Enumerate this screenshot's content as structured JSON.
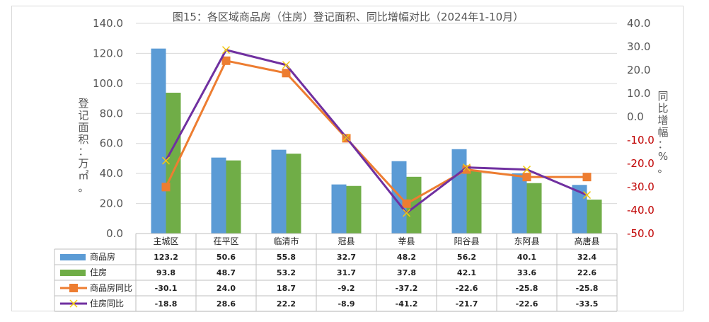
{
  "chart_data": {
    "type": "bar",
    "title": "图15：各区域商品房（住房）登记面积、同比增幅对比（2024年1-10月）",
    "ylabel_left": "登记面积：万㎡。",
    "ylabel_right": "同比增幅：%。",
    "categories": [
      "主城区",
      "茌平区",
      "临清市",
      "冠县",
      "莘县",
      "阳谷县",
      "东阿县",
      "高唐县"
    ],
    "ylim_left": [
      0,
      140
    ],
    "ylim_right": [
      -50,
      40
    ],
    "yticks_left": [
      "0.0",
      "20.0",
      "40.0",
      "60.0",
      "80.0",
      "100.0",
      "120.0",
      "140.0"
    ],
    "yticks_right": [
      "-50.0",
      "-40.0",
      "-30.0",
      "-20.0",
      "-10.0",
      "0.0",
      "10.0",
      "20.0",
      "30.0",
      "40.0"
    ],
    "grid": true,
    "legend": "data-table",
    "series": [
      {
        "name": "商品房",
        "kind": "bar",
        "axis": "left",
        "color": "#5b9bd5",
        "values": [
          123.2,
          50.6,
          55.8,
          32.7,
          48.2,
          56.2,
          40.1,
          32.4
        ],
        "labels": [
          "123.2",
          "50.6",
          "55.8",
          "32.7",
          "48.2",
          "56.2",
          "40.1",
          "32.4"
        ]
      },
      {
        "name": "住房",
        "kind": "bar",
        "axis": "left",
        "color": "#70ad47",
        "values": [
          93.8,
          48.7,
          53.2,
          31.7,
          37.8,
          42.1,
          33.6,
          22.6
        ],
        "labels": [
          "93.8",
          "48.7",
          "53.2",
          "31.7",
          "37.8",
          "42.1",
          "33.6",
          "22.6"
        ]
      },
      {
        "name": "商品房同比",
        "kind": "line",
        "axis": "right",
        "color": "#ed7d31",
        "marker": "square",
        "values": [
          -30.1,
          24.0,
          18.7,
          -9.2,
          -37.2,
          -22.6,
          -25.8,
          -25.8
        ],
        "labels": [
          "-30.1",
          "24.0",
          "18.7",
          "-9.2",
          "-37.2",
          "-22.6",
          "-25.8",
          "-25.8"
        ]
      },
      {
        "name": "住房同比",
        "kind": "line",
        "axis": "right",
        "color": "#7030a0",
        "marker": "x",
        "values": [
          -18.8,
          28.6,
          22.2,
          -8.9,
          -41.2,
          -21.7,
          -22.6,
          -33.5
        ],
        "labels": [
          "-18.8",
          "28.6",
          "22.2",
          "-8.9",
          "-41.2",
          "-21.7",
          "-22.6",
          "-33.5"
        ]
      }
    ]
  }
}
